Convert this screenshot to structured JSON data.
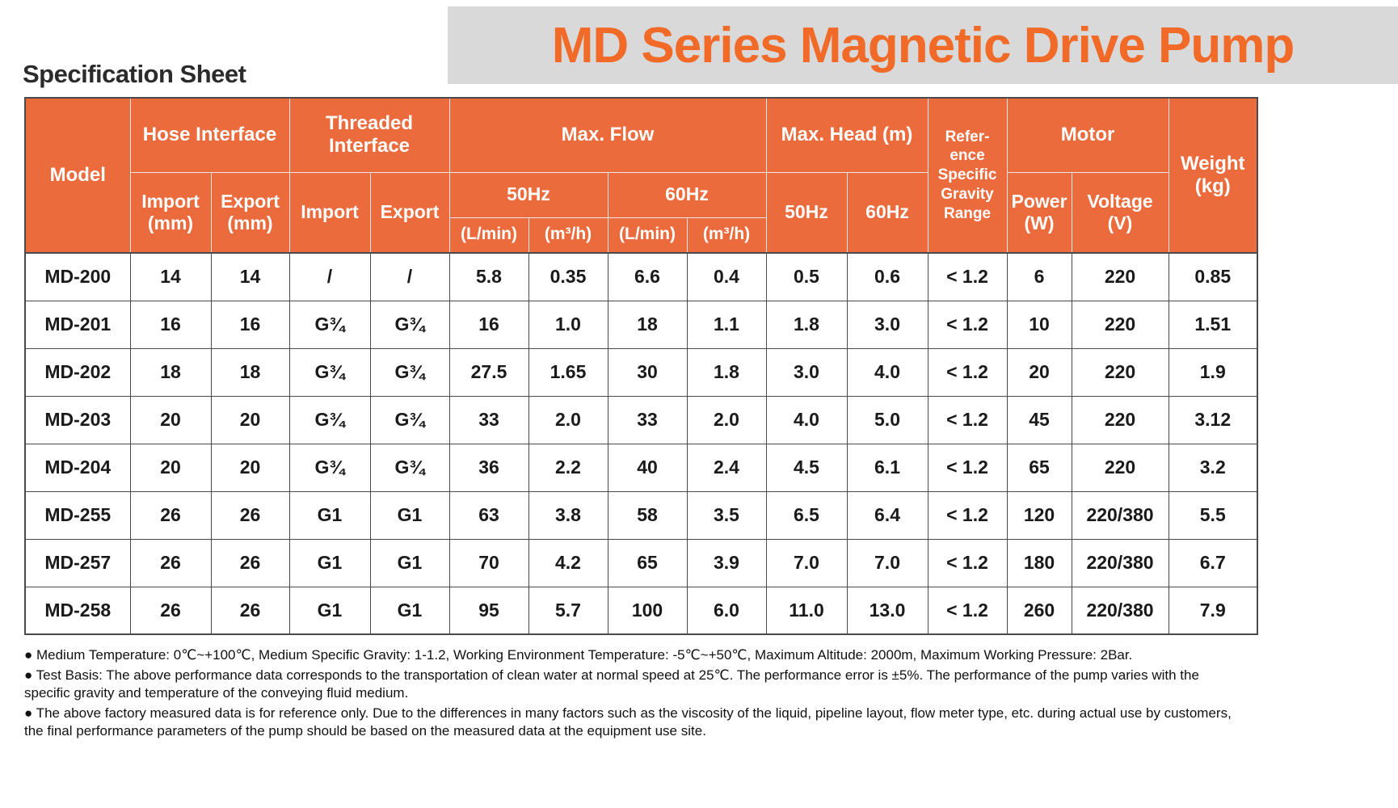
{
  "page": {
    "subtitle": "Specification Sheet",
    "title": "MD Series Magnetic Drive Pump"
  },
  "colors": {
    "header_orange": "#EC6B3D",
    "title_orange": "#F26A28",
    "banner_gray": "#D9D9D9"
  },
  "table": {
    "headers": {
      "model": "Model",
      "hose_interface": "Hose Interface",
      "threaded_interface": "Threaded\nInterface",
      "max_flow": "Max. Flow",
      "max_head": "Max. Head (m)",
      "ref_gravity": "Refer-\nence\nSpecific\nGravity\nRange",
      "motor": "Motor",
      "weight": "Weight\n(kg)",
      "import_mm": "Import\n(mm)",
      "export_mm": "Export\n(mm)",
      "import": "Import",
      "export": "Export",
      "hz50": "50Hz",
      "hz60": "60Hz",
      "l_min": "(L/min)",
      "m3_h": "(m³/h)",
      "power_w": "Power\n(W)",
      "voltage_v": "Voltage\n(V)"
    },
    "rows": [
      [
        "MD-200",
        "14",
        "14",
        "/",
        "/",
        "5.8",
        "0.35",
        "6.6",
        "0.4",
        "0.5",
        "0.6",
        "< 1.2",
        "6",
        "220",
        "0.85"
      ],
      [
        "MD-201",
        "16",
        "16",
        "G¾",
        "G¾",
        "16",
        "1.0",
        "18",
        "1.1",
        "1.8",
        "3.0",
        "< 1.2",
        "10",
        "220",
        "1.51"
      ],
      [
        "MD-202",
        "18",
        "18",
        "G¾",
        "G¾",
        "27.5",
        "1.65",
        "30",
        "1.8",
        "3.0",
        "4.0",
        "< 1.2",
        "20",
        "220",
        "1.9"
      ],
      [
        "MD-203",
        "20",
        "20",
        "G¾",
        "G¾",
        "33",
        "2.0",
        "33",
        "2.0",
        "4.0",
        "5.0",
        "< 1.2",
        "45",
        "220",
        "3.12"
      ],
      [
        "MD-204",
        "20",
        "20",
        "G¾",
        "G¾",
        "36",
        "2.2",
        "40",
        "2.4",
        "4.5",
        "6.1",
        "< 1.2",
        "65",
        "220",
        "3.2"
      ],
      [
        "MD-255",
        "26",
        "26",
        "G1",
        "G1",
        "63",
        "3.8",
        "58",
        "3.5",
        "6.5",
        "6.4",
        "< 1.2",
        "120",
        "220/380",
        "5.5"
      ],
      [
        "MD-257",
        "26",
        "26",
        "G1",
        "G1",
        "70",
        "4.2",
        "65",
        "3.9",
        "7.0",
        "7.0",
        "< 1.2",
        "180",
        "220/380",
        "6.7"
      ],
      [
        "MD-258",
        "26",
        "26",
        "G1",
        "G1",
        "95",
        "5.7",
        "100",
        "6.0",
        "11.0",
        "13.0",
        "< 1.2",
        "260",
        "220/380",
        "7.9"
      ]
    ]
  },
  "notes": [
    "● Medium Temperature: 0℃~+100℃, Medium Specific Gravity: 1-1.2, Working Environment Temperature: -5℃~+50℃, Maximum Altitude: 2000m, Maximum Working Pressure: 2Bar.",
    "● Test Basis: The above performance data corresponds to the transportation of clean water at normal speed at 25℃. The performance error is ±5%. The performance of the pump varies with the specific gravity and temperature of the conveying fluid medium.",
    "● The above factory measured data is for reference only. Due to the differences in many factors such as the viscosity of the liquid, pipeline layout, flow meter type, etc. during actual use by customers, the final performance parameters of the pump should be based on the measured data at the equipment use site."
  ]
}
